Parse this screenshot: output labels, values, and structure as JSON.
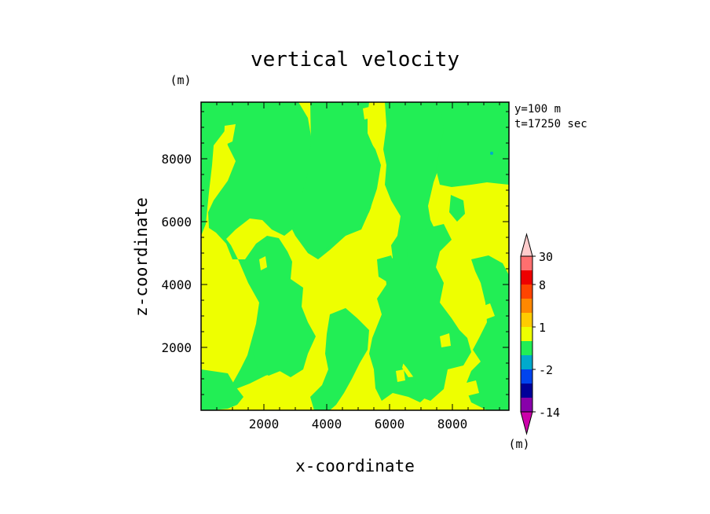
{
  "chart_data": {
    "type": "heatmap",
    "title": "vertical velocity",
    "xlabel": "x-coordinate",
    "ylabel": "z-coordinate",
    "y_unit_label": "(m)",
    "x_unit_label": "(m)",
    "info_lines": [
      "y=100 m",
      "t=17250 sec"
    ],
    "xlim": [
      0,
      9800
    ],
    "ylim": [
      0,
      9800
    ],
    "x_ticks": [
      2000,
      4000,
      6000,
      8000
    ],
    "y_ticks": [
      2000,
      4000,
      6000,
      8000
    ],
    "x_tick_labels": [
      "2000",
      "4000",
      "6000",
      "8000"
    ],
    "y_tick_labels": [
      "2000",
      "4000",
      "6000",
      "8000"
    ],
    "field_legend": {
      "dominant_positive_color": "#eeff00",
      "dominant_negative_color": "#22ee55"
    },
    "colorbar": {
      "levels": [
        -14,
        -8,
        -4,
        -2,
        -1,
        0,
        1,
        2,
        4,
        8,
        16,
        30
      ],
      "tick_labels": [
        "30",
        "8",
        "1",
        "-2",
        "-14"
      ],
      "tick_values": [
        30,
        8,
        1,
        -2,
        -14
      ],
      "bins": [
        {
          "from": -14,
          "to": -8,
          "color": "#8800aa"
        },
        {
          "from": -8,
          "to": -4,
          "color": "#000099"
        },
        {
          "from": -4,
          "to": -2,
          "color": "#0044ee"
        },
        {
          "from": -2,
          "to": -1,
          "color": "#00aacc"
        },
        {
          "from": -1,
          "to": 0,
          "color": "#22ee55"
        },
        {
          "from": 0,
          "to": 1,
          "color": "#eeff00"
        },
        {
          "from": 1,
          "to": 2,
          "color": "#ffcc00"
        },
        {
          "from": 2,
          "to": 4,
          "color": "#ff8800"
        },
        {
          "from": 4,
          "to": 8,
          "color": "#ff4400"
        },
        {
          "from": 8,
          "to": 16,
          "color": "#ee0000"
        },
        {
          "from": 16,
          "to": 30,
          "color": "#ff6f6f"
        }
      ],
      "under_color": "#cc00aa",
      "over_color": "#ffcccc"
    }
  }
}
